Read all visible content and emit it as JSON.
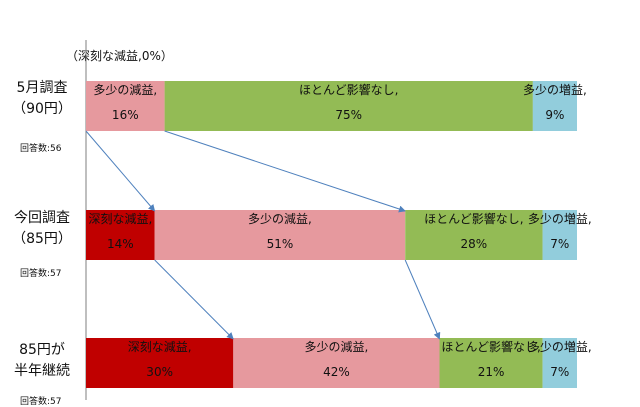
{
  "chart_data": {
    "type": "bar",
    "orientation": "horizontal",
    "stacked": true,
    "percent_stacked": true,
    "annotation": "（深刻な減益,0%）",
    "categories": [
      {
        "title_lines": [
          "5月調査",
          "（90円）"
        ],
        "count": "回答数:56"
      },
      {
        "title_lines": [
          "今回調査",
          "（85円）"
        ],
        "count": "回答数:57"
      },
      {
        "title_lines": [
          "85円が",
          "半年継続"
        ],
        "count": "回答数:57"
      }
    ],
    "series": [
      {
        "name": "深刻な減益",
        "label": "深刻な減益,",
        "color": "#c00000",
        "values": [
          0,
          14,
          30
        ]
      },
      {
        "name": "多少の減益",
        "label": "多少の減益,",
        "color": "#e6999e",
        "values": [
          16,
          51,
          42
        ]
      },
      {
        "name": "ほとんど影響なし",
        "label": "ほとんど影響なし,",
        "color": "#93bb55",
        "values": [
          75,
          28,
          21
        ]
      },
      {
        "name": "多少の増益",
        "label": "多少の増益,",
        "color": "#92cddc",
        "values": [
          9,
          7,
          7
        ]
      }
    ],
    "value_labels": [
      [
        "",
        "16%",
        "75%",
        "9%"
      ],
      [
        "14%",
        "51%",
        "28%",
        "7%"
      ],
      [
        "30%",
        "42%",
        "21%",
        "7%"
      ]
    ],
    "xlim": [
      0,
      100
    ],
    "grid": false,
    "legend": "none"
  }
}
